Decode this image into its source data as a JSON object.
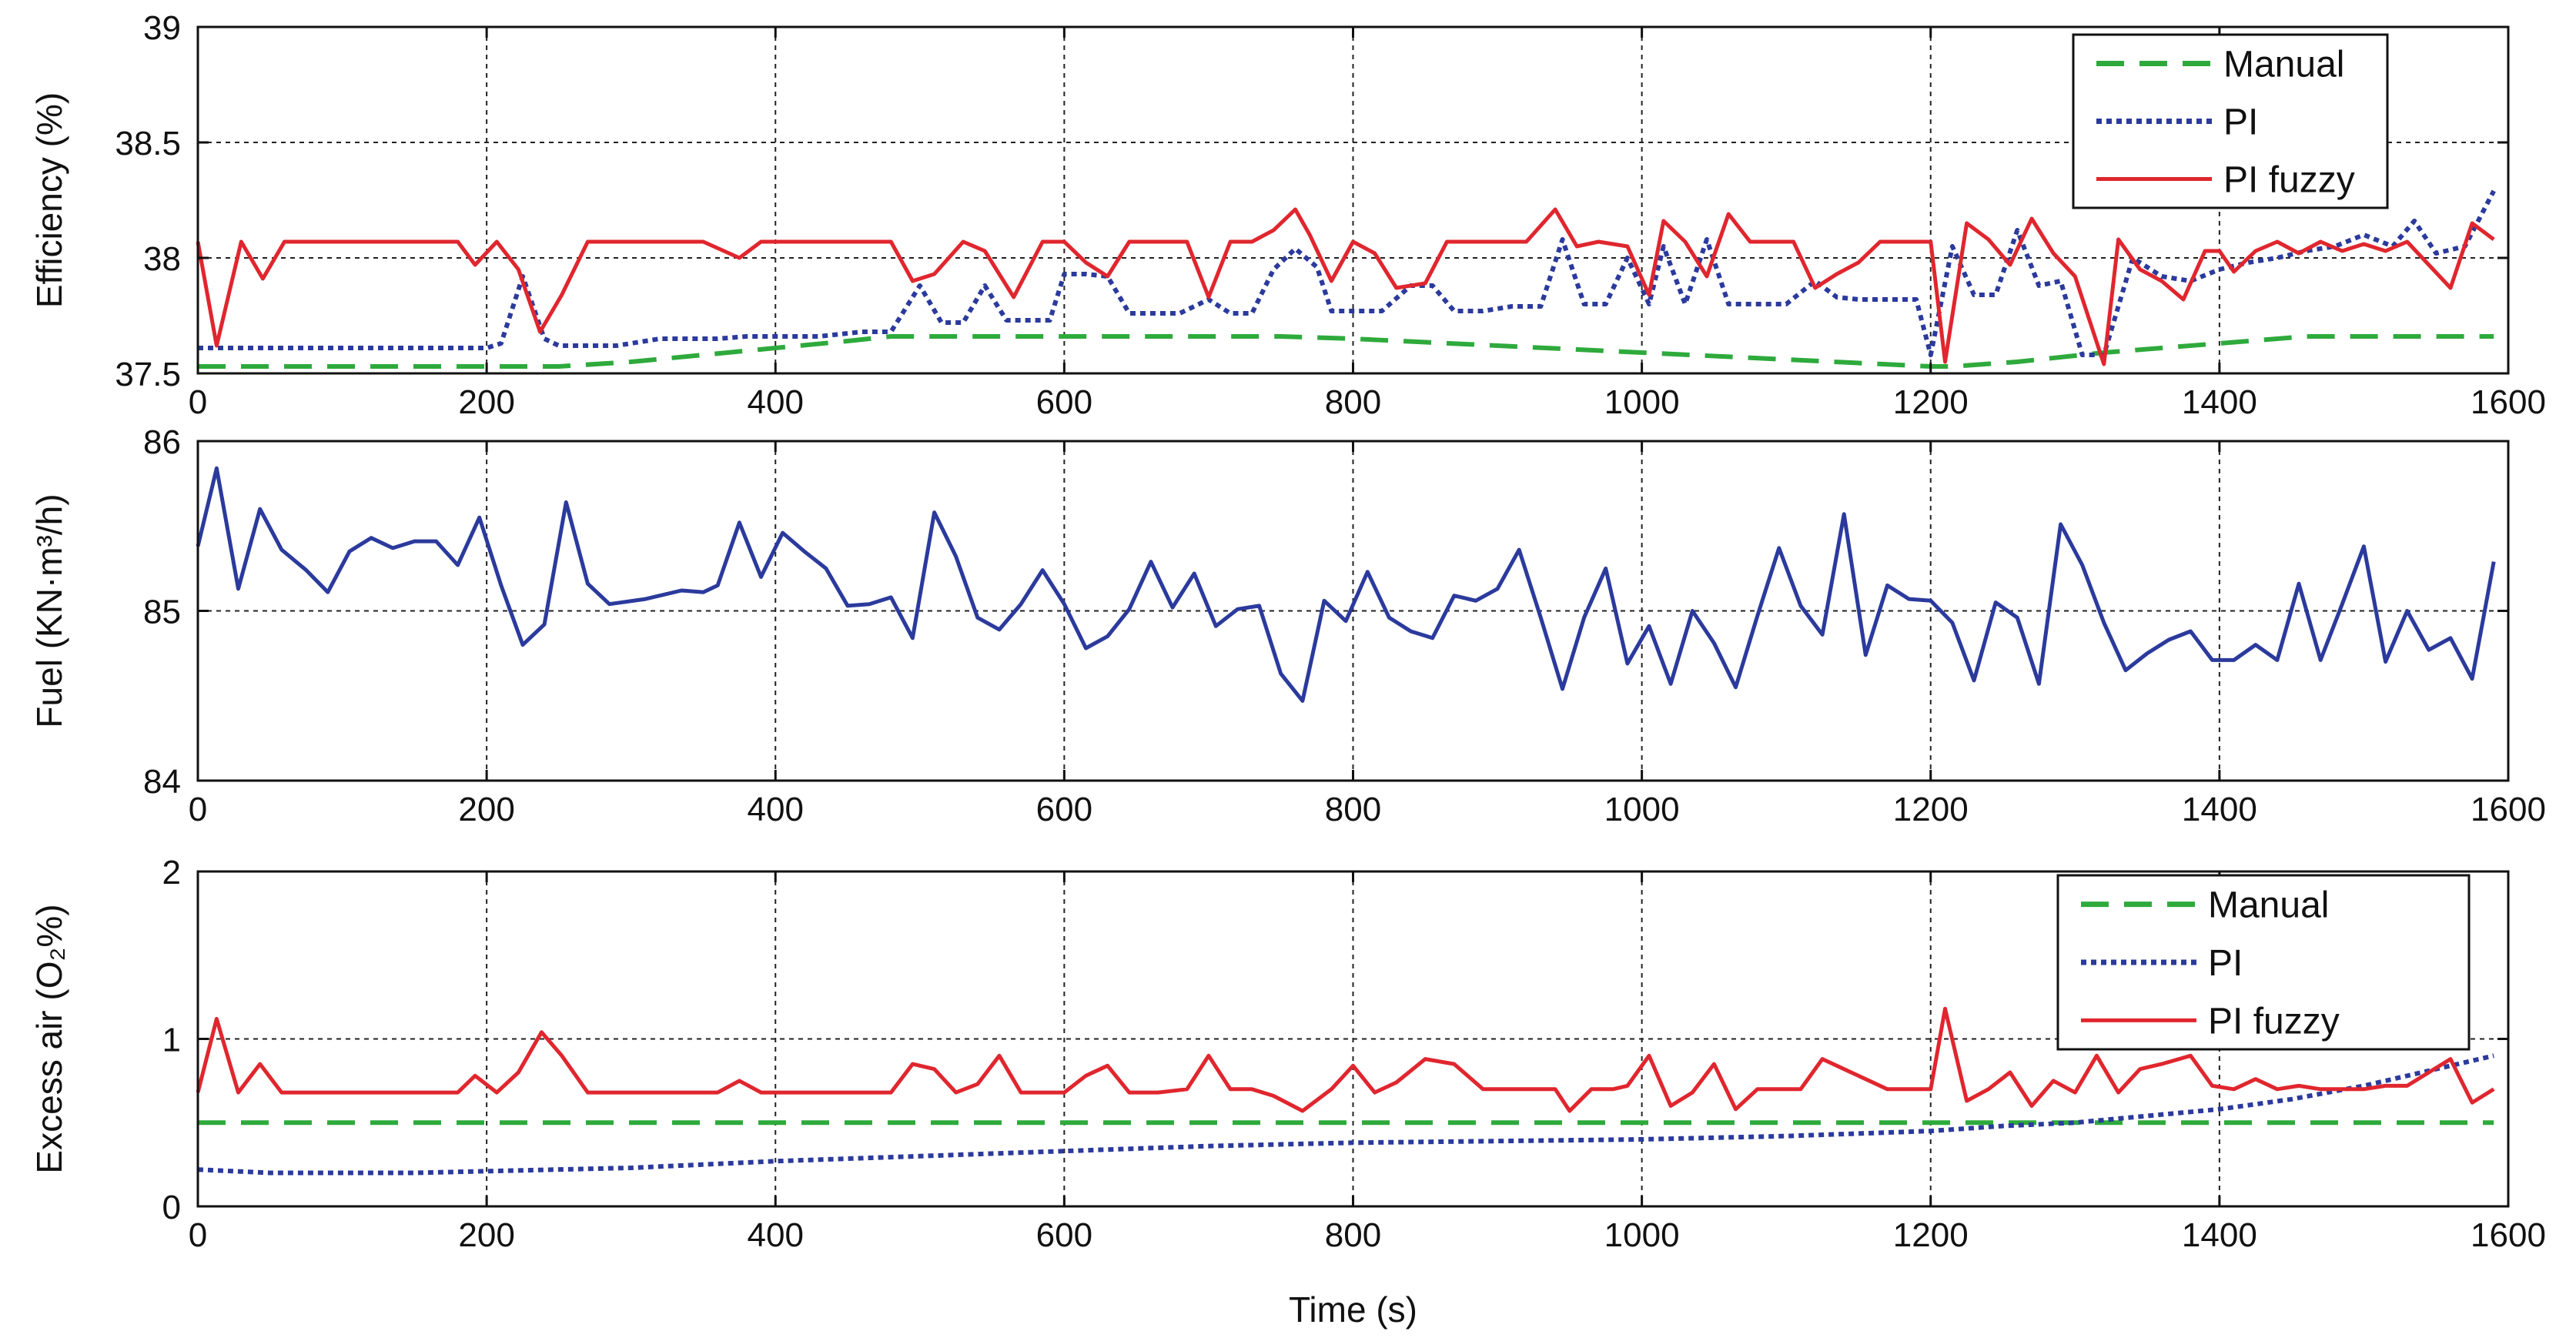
{
  "chart_data": [
    {
      "type": "line",
      "ylabel": "Efficiency (%)",
      "xlabel": "",
      "xlim": [
        0,
        1600
      ],
      "ylim": [
        37.5,
        39
      ],
      "xticks": [
        "0",
        "200",
        "400",
        "600",
        "800",
        "1000",
        "1200",
        "1400",
        "1600"
      ],
      "yticks": [
        "37.5",
        "38",
        "38.5",
        "39"
      ],
      "grid": true,
      "legend_position": "top-right",
      "series": [
        {
          "name": "Manual",
          "style": "dashed",
          "color": "#2eaa3c",
          "x": [
            0,
            250,
            300,
            350,
            400,
            450,
            480,
            700,
            750,
            800,
            900,
            1000,
            1100,
            1200,
            1215,
            1260,
            1320,
            1400,
            1460,
            1590
          ],
          "y": [
            37.53,
            37.53,
            37.55,
            37.58,
            37.61,
            37.64,
            37.66,
            37.66,
            37.66,
            37.65,
            37.62,
            37.59,
            37.56,
            37.53,
            37.53,
            37.55,
            37.59,
            37.63,
            37.66,
            37.66
          ]
        },
        {
          "name": "PI",
          "style": "dotted",
          "color": "#2b3a9c",
          "x": [
            0,
            200,
            210,
            225,
            240,
            250,
            270,
            290,
            300,
            320,
            340,
            360,
            380,
            400,
            430,
            460,
            480,
            500,
            515,
            530,
            545,
            560,
            575,
            590,
            600,
            615,
            630,
            645,
            660,
            680,
            700,
            715,
            730,
            745,
            760,
            775,
            785,
            800,
            820,
            840,
            855,
            870,
            890,
            910,
            930,
            945,
            960,
            975,
            990,
            1005,
            1015,
            1030,
            1045,
            1060,
            1080,
            1100,
            1120,
            1135,
            1150,
            1175,
            1190,
            1200,
            1215,
            1230,
            1245,
            1260,
            1275,
            1290,
            1305,
            1320,
            1340,
            1360,
            1380,
            1400,
            1420,
            1440,
            1460,
            1480,
            1500,
            1520,
            1535,
            1550,
            1570,
            1590
          ],
          "y": [
            37.61,
            37.61,
            37.63,
            37.92,
            37.65,
            37.62,
            37.62,
            37.62,
            37.63,
            37.65,
            37.65,
            37.65,
            37.66,
            37.66,
            37.66,
            37.68,
            37.68,
            37.88,
            37.72,
            37.72,
            37.88,
            37.73,
            37.73,
            37.73,
            37.93,
            37.93,
            37.92,
            37.76,
            37.76,
            37.76,
            37.82,
            37.76,
            37.76,
            37.95,
            38.04,
            37.96,
            37.77,
            37.77,
            37.77,
            37.88,
            37.88,
            37.77,
            37.77,
            37.79,
            37.79,
            38.08,
            37.8,
            37.8,
            38.0,
            37.8,
            38.05,
            37.8,
            38.08,
            37.8,
            37.8,
            37.8,
            37.9,
            37.83,
            37.82,
            37.82,
            37.82,
            37.58,
            38.05,
            37.84,
            37.84,
            38.12,
            37.88,
            37.9,
            37.58,
            37.58,
            38.0,
            37.92,
            37.9,
            37.95,
            37.98,
            38.0,
            38.03,
            38.05,
            38.1,
            38.05,
            38.16,
            38.02,
            38.05,
            38.29
          ]
        },
        {
          "name": "PI fuzzy",
          "style": "solid",
          "color": "#e0262e",
          "x": [
            0,
            13,
            30,
            45,
            60,
            80,
            100,
            120,
            140,
            160,
            180,
            192,
            207,
            222,
            237,
            252,
            270,
            290,
            310,
            330,
            350,
            375,
            390,
            410,
            430,
            450,
            480,
            495,
            510,
            530,
            545,
            565,
            585,
            600,
            615,
            630,
            645,
            665,
            685,
            700,
            715,
            730,
            745,
            760,
            770,
            785,
            800,
            815,
            830,
            850,
            865,
            880,
            900,
            920,
            940,
            955,
            970,
            990,
            1005,
            1015,
            1030,
            1045,
            1060,
            1075,
            1090,
            1105,
            1120,
            1135,
            1150,
            1165,
            1185,
            1200,
            1210,
            1225,
            1240,
            1255,
            1270,
            1285,
            1300,
            1320,
            1330,
            1345,
            1360,
            1375,
            1390,
            1400,
            1410,
            1425,
            1440,
            1455,
            1470,
            1485,
            1500,
            1515,
            1530,
            1545,
            1560,
            1575,
            1590
          ],
          "y": [
            38.07,
            37.62,
            38.07,
            37.91,
            38.07,
            38.07,
            38.07,
            38.07,
            38.07,
            38.07,
            38.07,
            37.97,
            38.07,
            37.95,
            37.68,
            37.84,
            38.07,
            38.07,
            38.07,
            38.07,
            38.07,
            38.0,
            38.07,
            38.07,
            38.07,
            38.07,
            38.07,
            37.9,
            37.93,
            38.07,
            38.03,
            37.83,
            38.07,
            38.07,
            37.98,
            37.92,
            38.07,
            38.07,
            38.07,
            37.83,
            38.07,
            38.07,
            38.12,
            38.21,
            38.1,
            37.9,
            38.07,
            38.02,
            37.87,
            37.89,
            38.07,
            38.07,
            38.07,
            38.07,
            38.21,
            38.05,
            38.07,
            38.05,
            37.84,
            38.16,
            38.07,
            37.92,
            38.19,
            38.07,
            38.07,
            38.07,
            37.87,
            37.93,
            37.98,
            38.07,
            38.07,
            38.07,
            37.55,
            38.15,
            38.08,
            37.97,
            38.17,
            38.02,
            37.92,
            37.54,
            38.08,
            37.95,
            37.9,
            37.82,
            38.03,
            38.03,
            37.94,
            38.03,
            38.07,
            38.02,
            38.07,
            38.03,
            38.06,
            38.03,
            38.07,
            37.97,
            37.87,
            38.15,
            38.08
          ]
        }
      ]
    },
    {
      "type": "line",
      "ylabel": "Fuel (KN·m³/h)",
      "xlabel": "",
      "xlim": [
        0,
        1600
      ],
      "ylim": [
        84,
        86
      ],
      "xticks": [
        "0",
        "200",
        "400",
        "600",
        "800",
        "1000",
        "1200",
        "1400",
        "1600"
      ],
      "yticks": [
        "84",
        "85",
        "86"
      ],
      "grid": true,
      "series": [
        {
          "name": "Fuel",
          "style": "solid",
          "color": "#2b3a9c",
          "x": [
            0,
            13,
            28,
            43,
            58,
            75,
            90,
            105,
            120,
            135,
            150,
            165,
            180,
            195,
            210,
            225,
            240,
            255,
            270,
            285,
            310,
            335,
            350,
            360,
            375,
            390,
            405,
            420,
            435,
            450,
            465,
            480,
            495,
            510,
            525,
            540,
            555,
            570,
            585,
            600,
            615,
            630,
            645,
            660,
            675,
            690,
            705,
            720,
            735,
            750,
            765,
            780,
            795,
            810,
            825,
            840,
            855,
            870,
            885,
            900,
            915,
            930,
            945,
            960,
            975,
            990,
            1005,
            1020,
            1035,
            1050,
            1065,
            1080,
            1095,
            1110,
            1125,
            1140,
            1155,
            1170,
            1185,
            1200,
            1215,
            1230,
            1245,
            1260,
            1275,
            1290,
            1305,
            1320,
            1335,
            1350,
            1365,
            1380,
            1395,
            1410,
            1425,
            1440,
            1455,
            1470,
            1485,
            1500,
            1515,
            1530,
            1545,
            1560,
            1575,
            1590
          ],
          "y": [
            85.38,
            85.84,
            85.13,
            85.6,
            85.36,
            85.24,
            85.11,
            85.35,
            85.43,
            85.37,
            85.41,
            85.41,
            85.27,
            85.55,
            85.15,
            84.8,
            84.92,
            85.64,
            85.16,
            85.04,
            85.07,
            85.12,
            85.11,
            85.15,
            85.52,
            85.2,
            85.46,
            85.35,
            85.25,
            85.03,
            85.04,
            85.08,
            84.84,
            85.58,
            85.32,
            84.96,
            84.89,
            85.04,
            85.24,
            85.04,
            84.78,
            84.85,
            85.01,
            85.29,
            85.02,
            85.22,
            84.91,
            85.01,
            85.03,
            84.63,
            84.47,
            85.06,
            84.94,
            85.23,
            84.96,
            84.88,
            84.84,
            85.09,
            85.06,
            85.13,
            85.36,
            84.96,
            84.54,
            84.96,
            85.25,
            84.69,
            84.91,
            84.57,
            85.0,
            84.81,
            84.55,
            84.97,
            85.37,
            85.03,
            84.86,
            85.57,
            84.74,
            85.15,
            85.07,
            85.06,
            84.93,
            84.59,
            85.05,
            84.96,
            84.57,
            85.51,
            85.27,
            84.93,
            84.65,
            84.75,
            84.83,
            84.88,
            84.71,
            84.71,
            84.8,
            84.71,
            85.16,
            84.71,
            85.04,
            85.38,
            84.7,
            85.0,
            84.77,
            84.84,
            84.6,
            85.29
          ]
        }
      ]
    },
    {
      "type": "line",
      "ylabel": "Excess air (O₂%)",
      "xlabel": "Time (s)",
      "xlim": [
        0,
        1600
      ],
      "ylim": [
        0,
        2
      ],
      "xticks": [
        "0",
        "200",
        "400",
        "600",
        "800",
        "1000",
        "1200",
        "1400",
        "1600"
      ],
      "yticks": [
        "0",
        "1",
        "2"
      ],
      "grid": true,
      "legend_position": "top-right",
      "series": [
        {
          "name": "Manual",
          "style": "dashed",
          "color": "#2eaa3c",
          "x": [
            0,
            1590
          ],
          "y": [
            0.5,
            0.5
          ]
        },
        {
          "name": "PI",
          "style": "dotted",
          "color": "#2b3a9c",
          "x": [
            0,
            50,
            150,
            200,
            300,
            400,
            500,
            600,
            700,
            800,
            900,
            1000,
            1100,
            1200,
            1250,
            1300,
            1350,
            1400,
            1450,
            1500,
            1550,
            1590
          ],
          "y": [
            0.22,
            0.2,
            0.2,
            0.21,
            0.23,
            0.27,
            0.3,
            0.33,
            0.36,
            0.38,
            0.39,
            0.4,
            0.42,
            0.45,
            0.48,
            0.5,
            0.54,
            0.58,
            0.64,
            0.72,
            0.82,
            0.9
          ]
        },
        {
          "name": "PI fuzzy",
          "style": "solid",
          "color": "#e0262e",
          "x": [
            0,
            13,
            28,
            43,
            58,
            75,
            100,
            130,
            160,
            180,
            192,
            207,
            222,
            238,
            252,
            270,
            300,
            330,
            360,
            375,
            390,
            420,
            450,
            480,
            495,
            510,
            525,
            540,
            555,
            570,
            585,
            600,
            615,
            630,
            645,
            665,
            685,
            700,
            715,
            730,
            745,
            765,
            785,
            800,
            815,
            830,
            850,
            870,
            890,
            905,
            920,
            940,
            950,
            965,
            980,
            990,
            1005,
            1020,
            1035,
            1050,
            1065,
            1080,
            1095,
            1110,
            1125,
            1140,
            1155,
            1170,
            1185,
            1200,
            1210,
            1225,
            1240,
            1255,
            1270,
            1285,
            1300,
            1315,
            1330,
            1345,
            1360,
            1380,
            1395,
            1410,
            1425,
            1440,
            1455,
            1470,
            1485,
            1500,
            1515,
            1530,
            1545,
            1560,
            1575,
            1590
          ],
          "y": [
            0.68,
            1.12,
            0.68,
            0.85,
            0.68,
            0.68,
            0.68,
            0.68,
            0.68,
            0.68,
            0.78,
            0.68,
            0.8,
            1.04,
            0.9,
            0.68,
            0.68,
            0.68,
            0.68,
            0.75,
            0.68,
            0.68,
            0.68,
            0.68,
            0.85,
            0.82,
            0.68,
            0.73,
            0.9,
            0.68,
            0.68,
            0.68,
            0.78,
            0.84,
            0.68,
            0.68,
            0.7,
            0.9,
            0.7,
            0.7,
            0.66,
            0.57,
            0.7,
            0.84,
            0.68,
            0.74,
            0.88,
            0.85,
            0.7,
            0.7,
            0.7,
            0.7,
            0.57,
            0.7,
            0.7,
            0.72,
            0.9,
            0.6,
            0.68,
            0.85,
            0.58,
            0.7,
            0.7,
            0.7,
            0.88,
            0.82,
            0.76,
            0.7,
            0.7,
            0.7,
            1.18,
            0.63,
            0.7,
            0.8,
            0.6,
            0.75,
            0.68,
            0.9,
            0.68,
            0.82,
            0.85,
            0.9,
            0.72,
            0.7,
            0.76,
            0.7,
            0.72,
            0.7,
            0.7,
            0.7,
            0.72,
            0.72,
            0.8,
            0.88,
            0.62,
            0.7
          ]
        }
      ]
    }
  ]
}
